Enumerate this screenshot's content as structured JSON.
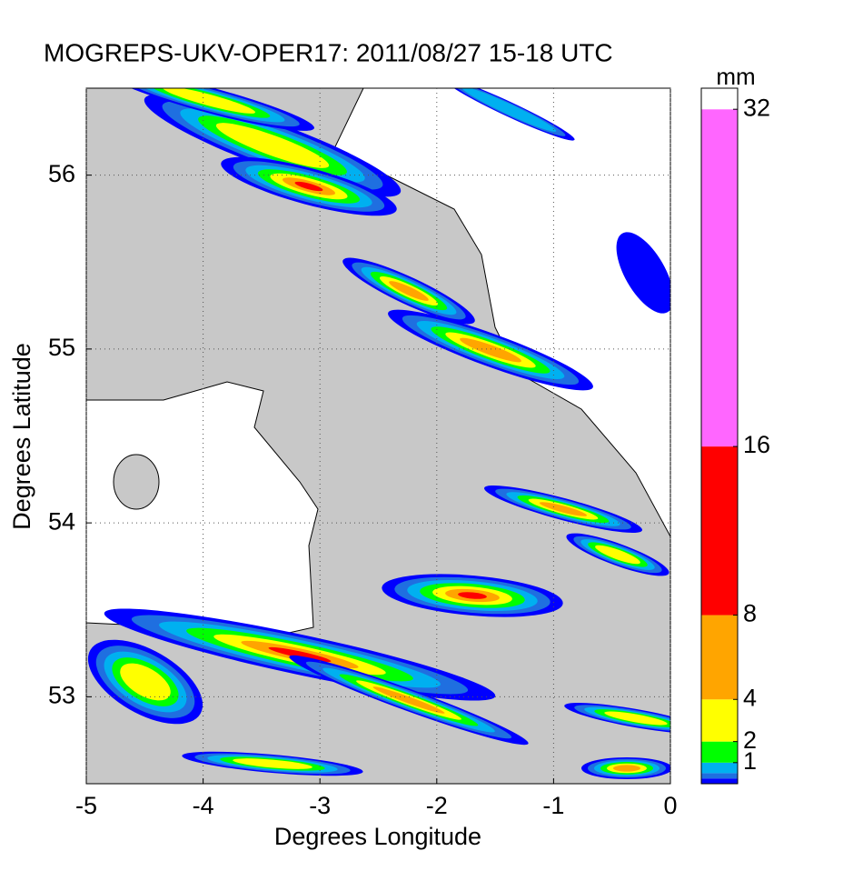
{
  "chart_data": {
    "type": "map",
    "title": "MOGREPS-UKV-OPER17: 2011/08/27 15-18 UTC",
    "xlabel": "Degrees Longitude",
    "ylabel": "Degrees Latitude",
    "xlim": [
      -5,
      0
    ],
    "ylim": [
      52.5,
      56.5
    ],
    "xticks": [
      -5,
      -4,
      -3,
      -2,
      -1,
      0
    ],
    "yticks": [
      53,
      54,
      55,
      56
    ],
    "grid": true,
    "colorbar": {
      "label": "mm",
      "lim": [
        0,
        33
      ],
      "ticks": [
        1,
        2,
        4,
        8,
        16,
        32
      ],
      "bounds": [
        0,
        0.25,
        0.5,
        1,
        2,
        4,
        8,
        16,
        32,
        33
      ],
      "colors": [
        "#0000ff",
        "#1f6fe0",
        "#00b0f0",
        "#00ff00",
        "#ffff00",
        "#ffa500",
        "#ff0000",
        "#ff66ff",
        "#ffffff"
      ]
    }
  }
}
